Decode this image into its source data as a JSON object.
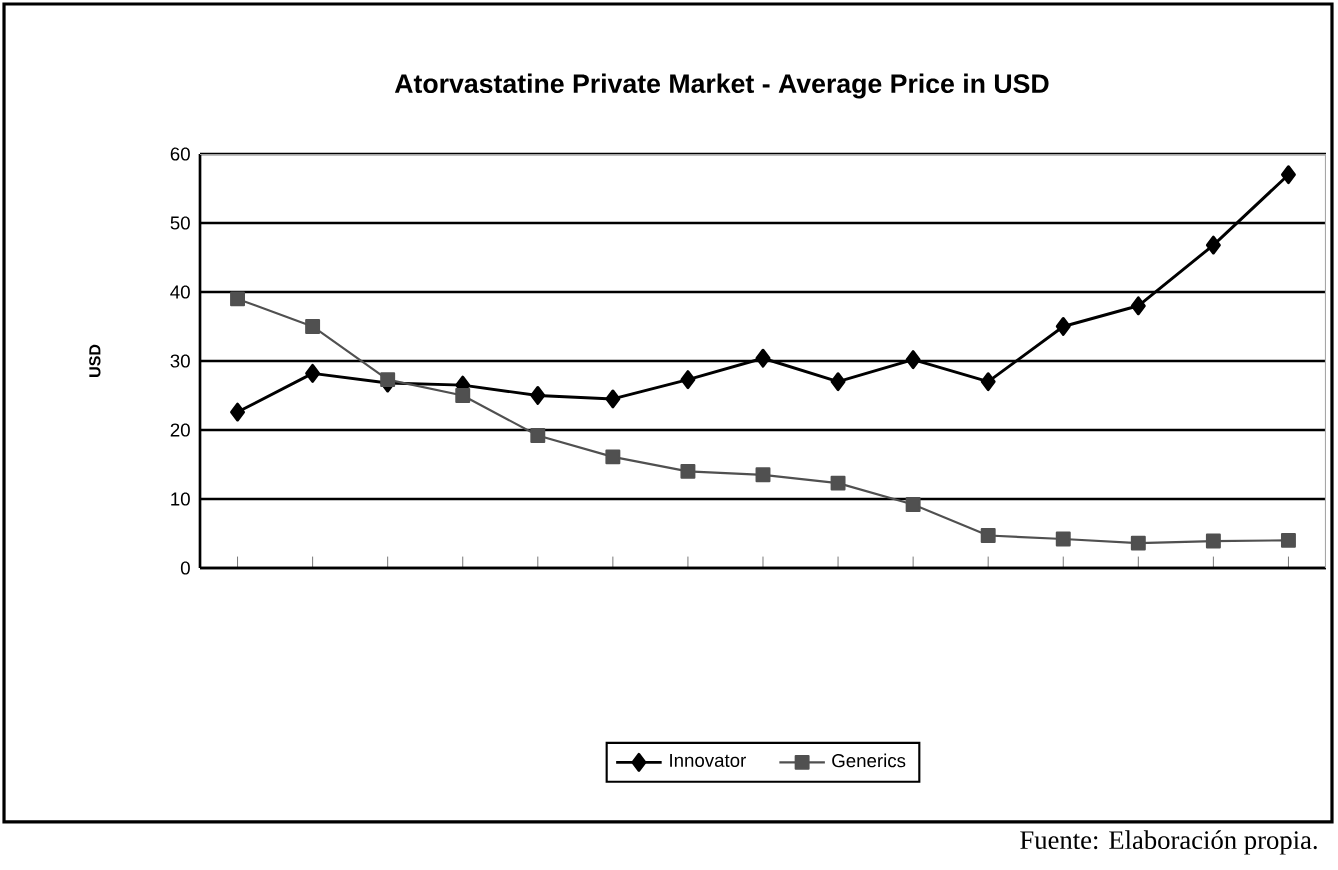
{
  "chart_data": {
    "type": "line",
    "title": "Atorvastatine Private Market - Average Price in USD",
    "ylabel": "USD",
    "categories": [
      null,
      null,
      null,
      null,
      null,
      null,
      null,
      null,
      null,
      null,
      null,
      null,
      null,
      null,
      null
    ],
    "series": [
      {
        "name": "Innovator",
        "color": "#000000",
        "marker": "diamond",
        "values": [
          22.6,
          28.2,
          26.8,
          26.5,
          25,
          24.5,
          27.3,
          30.4,
          27,
          30.2,
          27,
          35,
          38,
          46.8,
          57
        ]
      },
      {
        "name": "Generics",
        "color": "#505050",
        "marker": "square",
        "values": [
          39,
          35,
          27.3,
          25,
          19.2,
          16.1,
          14,
          13.5,
          12.3,
          9.2,
          4.7,
          4.2,
          3.6,
          3.9,
          4.0
        ]
      }
    ],
    "ylim": [
      0,
      60
    ],
    "yticks": [
      0,
      10,
      20,
      30,
      40,
      50,
      60
    ],
    "grid": "y",
    "legend": "bottom",
    "annotations": [
      "Fuente: Elaboración propia."
    ]
  }
}
